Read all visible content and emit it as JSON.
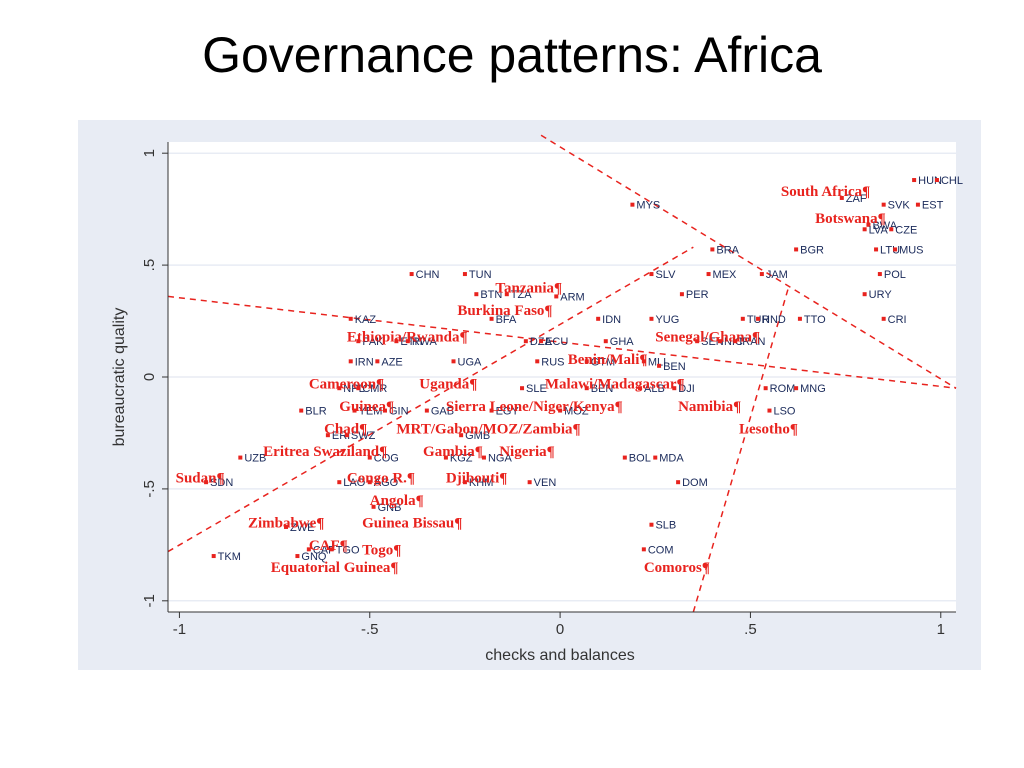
{
  "slide": {
    "title": "Governance patterns: Africa"
  },
  "chart_data": {
    "type": "scatter",
    "xlabel": "checks and balances",
    "ylabel": "bureaucratic quality",
    "xlim": [
      -1.03,
      1.04
    ],
    "ylim": [
      -1.05,
      1.05
    ],
    "xticks": [
      {
        "v": -1,
        "t": "-1"
      },
      {
        "v": -0.5,
        "t": "-.5"
      },
      {
        "v": 0,
        "t": "0"
      },
      {
        "v": 0.5,
        "t": ".5"
      },
      {
        "v": 1,
        "t": "1"
      }
    ],
    "yticks": [
      {
        "v": -1,
        "t": "-1"
      },
      {
        "v": -0.5,
        "t": "-.5"
      },
      {
        "v": 0,
        "t": "0"
      },
      {
        "v": 0.5,
        "t": ".5"
      },
      {
        "v": 1,
        "t": "1"
      }
    ],
    "grid": "horizontal",
    "colors": {
      "background": "#e8ecf4",
      "plot": "#ffffff",
      "grid": "#e8ecf4",
      "others": "#1a2a5a",
      "africa": "#e8231e"
    },
    "guide_lines": [
      {
        "x1": -1.03,
        "y1": 0.36,
        "x2": 1.04,
        "y2": -0.05
      },
      {
        "x1": -0.05,
        "y1": 1.08,
        "x2": 1.04,
        "y2": -0.05
      },
      {
        "x1": -1.03,
        "y1": -0.78,
        "x2": 0.35,
        "y2": 0.58
      },
      {
        "x1": 0.35,
        "y1": -1.05,
        "x2": 0.6,
        "y2": 0.4
      }
    ],
    "points": [
      {
        "x": 0.93,
        "y": 0.88,
        "label": "HUN"
      },
      {
        "x": 0.99,
        "y": 0.88,
        "label": "CHL"
      },
      {
        "x": 0.74,
        "y": 0.8,
        "label": "ZAF"
      },
      {
        "x": 0.85,
        "y": 0.77,
        "label": "SVK"
      },
      {
        "x": 0.94,
        "y": 0.77,
        "label": "EST"
      },
      {
        "x": 0.81,
        "y": 0.68,
        "label": "BWA"
      },
      {
        "x": 0.8,
        "y": 0.66,
        "label": "LVA"
      },
      {
        "x": 0.87,
        "y": 0.66,
        "label": "CZE"
      },
      {
        "x": 0.19,
        "y": 0.77,
        "label": "MYS"
      },
      {
        "x": 0.4,
        "y": 0.57,
        "label": "BRA"
      },
      {
        "x": 0.62,
        "y": 0.57,
        "label": "BGR"
      },
      {
        "x": 0.83,
        "y": 0.57,
        "label": "LTU"
      },
      {
        "x": 0.88,
        "y": 0.57,
        "label": "MUS"
      },
      {
        "x": -0.39,
        "y": 0.46,
        "label": "CHN"
      },
      {
        "x": -0.25,
        "y": 0.46,
        "label": "TUN"
      },
      {
        "x": 0.24,
        "y": 0.46,
        "label": "SLV"
      },
      {
        "x": 0.39,
        "y": 0.46,
        "label": "MEX"
      },
      {
        "x": 0.53,
        "y": 0.46,
        "label": "JAM"
      },
      {
        "x": 0.84,
        "y": 0.46,
        "label": "POL"
      },
      {
        "x": -0.22,
        "y": 0.37,
        "label": "BTN"
      },
      {
        "x": -0.14,
        "y": 0.37,
        "label": "TZA"
      },
      {
        "x": 0.32,
        "y": 0.37,
        "label": "PER"
      },
      {
        "x": 0.8,
        "y": 0.37,
        "label": "URY"
      },
      {
        "x": -0.01,
        "y": 0.36,
        "label": "ARM"
      },
      {
        "x": -0.18,
        "y": 0.26,
        "label": "BFA"
      },
      {
        "x": -0.55,
        "y": 0.26,
        "label": "KAZ"
      },
      {
        "x": 0.1,
        "y": 0.26,
        "label": "IDN"
      },
      {
        "x": 0.24,
        "y": 0.26,
        "label": "YUG"
      },
      {
        "x": 0.48,
        "y": 0.26,
        "label": "TUR"
      },
      {
        "x": 0.52,
        "y": 0.26,
        "label": "HND"
      },
      {
        "x": 0.63,
        "y": 0.26,
        "label": "TTO"
      },
      {
        "x": 0.85,
        "y": 0.26,
        "label": "CRI"
      },
      {
        "x": -0.53,
        "y": 0.16,
        "label": "PAK"
      },
      {
        "x": -0.43,
        "y": 0.16,
        "label": "ETH"
      },
      {
        "x": -0.4,
        "y": 0.16,
        "label": "RWA"
      },
      {
        "x": -0.09,
        "y": 0.16,
        "label": "DZA"
      },
      {
        "x": -0.05,
        "y": 0.16,
        "label": "ECU"
      },
      {
        "x": 0.12,
        "y": 0.16,
        "label": "GHA"
      },
      {
        "x": 0.36,
        "y": 0.16,
        "label": "SEN"
      },
      {
        "x": 0.42,
        "y": 0.16,
        "label": "NIC"
      },
      {
        "x": 0.46,
        "y": 0.16,
        "label": "IRAN"
      },
      {
        "x": -0.55,
        "y": 0.07,
        "label": "IRN"
      },
      {
        "x": -0.48,
        "y": 0.07,
        "label": "AZE"
      },
      {
        "x": -0.28,
        "y": 0.07,
        "label": "UGA"
      },
      {
        "x": -0.06,
        "y": 0.07,
        "label": "RUS"
      },
      {
        "x": 0.07,
        "y": 0.07,
        "label": "GTM"
      },
      {
        "x": 0.22,
        "y": 0.07,
        "label": "MLI"
      },
      {
        "x": 0.26,
        "y": 0.05,
        "label": "BEN"
      },
      {
        "x": -0.58,
        "y": -0.05,
        "label": "NPL"
      },
      {
        "x": -0.53,
        "y": -0.05,
        "label": "CMR"
      },
      {
        "x": -0.1,
        "y": -0.05,
        "label": "SLE"
      },
      {
        "x": 0.07,
        "y": -0.05,
        "label": "BEN"
      },
      {
        "x": 0.21,
        "y": -0.05,
        "label": "ALB"
      },
      {
        "x": 0.3,
        "y": -0.05,
        "label": "DJI"
      },
      {
        "x": 0.54,
        "y": -0.05,
        "label": "ROM"
      },
      {
        "x": 0.62,
        "y": -0.05,
        "label": "MNG"
      },
      {
        "x": -0.68,
        "y": -0.15,
        "label": "BLR"
      },
      {
        "x": -0.54,
        "y": -0.15,
        "label": "YEM"
      },
      {
        "x": -0.46,
        "y": -0.15,
        "label": "GIN"
      },
      {
        "x": -0.35,
        "y": -0.15,
        "label": "GAB"
      },
      {
        "x": -0.18,
        "y": -0.15,
        "label": "EGY"
      },
      {
        "x": 0.0,
        "y": -0.15,
        "label": "MOZ"
      },
      {
        "x": 0.55,
        "y": -0.15,
        "label": "LSO"
      },
      {
        "x": -0.61,
        "y": -0.26,
        "label": "ERI"
      },
      {
        "x": -0.56,
        "y": -0.26,
        "label": "SWZ"
      },
      {
        "x": -0.26,
        "y": -0.26,
        "label": "GMB"
      },
      {
        "x": -0.84,
        "y": -0.36,
        "label": "UZB"
      },
      {
        "x": -0.5,
        "y": -0.36,
        "label": "COG"
      },
      {
        "x": -0.3,
        "y": -0.36,
        "label": "KGZ"
      },
      {
        "x": -0.2,
        "y": -0.36,
        "label": "NGA"
      },
      {
        "x": 0.17,
        "y": -0.36,
        "label": "BOL"
      },
      {
        "x": 0.25,
        "y": -0.36,
        "label": "MDA"
      },
      {
        "x": -0.93,
        "y": -0.47,
        "label": "SDN"
      },
      {
        "x": -0.58,
        "y": -0.47,
        "label": "LAO"
      },
      {
        "x": -0.5,
        "y": -0.47,
        "label": "AGO"
      },
      {
        "x": -0.25,
        "y": -0.47,
        "label": "KHM"
      },
      {
        "x": -0.08,
        "y": -0.47,
        "label": "VEN"
      },
      {
        "x": 0.31,
        "y": -0.47,
        "label": "DOM"
      },
      {
        "x": -0.49,
        "y": -0.58,
        "label": "GNB"
      },
      {
        "x": -0.72,
        "y": -0.67,
        "label": "ZWE"
      },
      {
        "x": 0.24,
        "y": -0.66,
        "label": "SLB"
      },
      {
        "x": -0.66,
        "y": -0.77,
        "label": "CAF"
      },
      {
        "x": -0.6,
        "y": -0.77,
        "label": "TGO"
      },
      {
        "x": -0.69,
        "y": -0.8,
        "label": "GNQ"
      },
      {
        "x": 0.22,
        "y": -0.77,
        "label": "COM"
      },
      {
        "x": -0.91,
        "y": -0.8,
        "label": "TKM"
      }
    ],
    "annotations": [
      {
        "x": 0.58,
        "y": 0.83,
        "text": "South Africa¶"
      },
      {
        "x": 0.67,
        "y": 0.71,
        "text": "Botswana¶"
      },
      {
        "x": -0.17,
        "y": 0.4,
        "text": "Tanzania¶"
      },
      {
        "x": -0.27,
        "y": 0.3,
        "text": "Burkina Faso¶"
      },
      {
        "x": -0.56,
        "y": 0.18,
        "text": "Ethiopia/Rwanda¶"
      },
      {
        "x": 0.25,
        "y": 0.18,
        "text": "Senegal/Ghana¶"
      },
      {
        "x": 0.02,
        "y": 0.08,
        "text": "Benin/Mali¶"
      },
      {
        "x": -0.66,
        "y": -0.03,
        "text": "Cameroon¶"
      },
      {
        "x": -0.37,
        "y": -0.03,
        "text": "Uganda¶"
      },
      {
        "x": -0.04,
        "y": -0.03,
        "text": "Malawi/Madagascar¶"
      },
      {
        "x": -0.58,
        "y": -0.13,
        "text": "Guinea¶"
      },
      {
        "x": -0.3,
        "y": -0.13,
        "text": "Sierra Leone/Niger/Kenya¶"
      },
      {
        "x": 0.31,
        "y": -0.13,
        "text": "Namibia¶"
      },
      {
        "x": -0.62,
        "y": -0.23,
        "text": "Chad¶"
      },
      {
        "x": -0.43,
        "y": -0.23,
        "text": "MRT/Gabon/MOZ/Zambia¶"
      },
      {
        "x": 0.47,
        "y": -0.23,
        "text": "Lesotho¶"
      },
      {
        "x": -0.78,
        "y": -0.33,
        "text": "Eritrea Swaziland¶"
      },
      {
        "x": -0.36,
        "y": -0.33,
        "text": "Gambia¶"
      },
      {
        "x": -0.16,
        "y": -0.33,
        "text": "Nigeria¶"
      },
      {
        "x": -1.01,
        "y": -0.45,
        "text": "Sudan¶"
      },
      {
        "x": -0.56,
        "y": -0.45,
        "text": "Congo R.¶"
      },
      {
        "x": -0.3,
        "y": -0.45,
        "text": "Djibouti¶"
      },
      {
        "x": -0.5,
        "y": -0.55,
        "text": "Angola¶"
      },
      {
        "x": -0.82,
        "y": -0.65,
        "text": "Zimbabwe¶"
      },
      {
        "x": -0.52,
        "y": -0.65,
        "text": "Guinea Bissau¶"
      },
      {
        "x": -0.66,
        "y": -0.75,
        "text": "CAF¶"
      },
      {
        "x": -0.52,
        "y": -0.77,
        "text": "Togo¶"
      },
      {
        "x": 0.22,
        "y": -0.85,
        "text": "Comoros¶"
      },
      {
        "x": -0.76,
        "y": -0.85,
        "text": "Equatorial Guinea¶"
      }
    ]
  }
}
